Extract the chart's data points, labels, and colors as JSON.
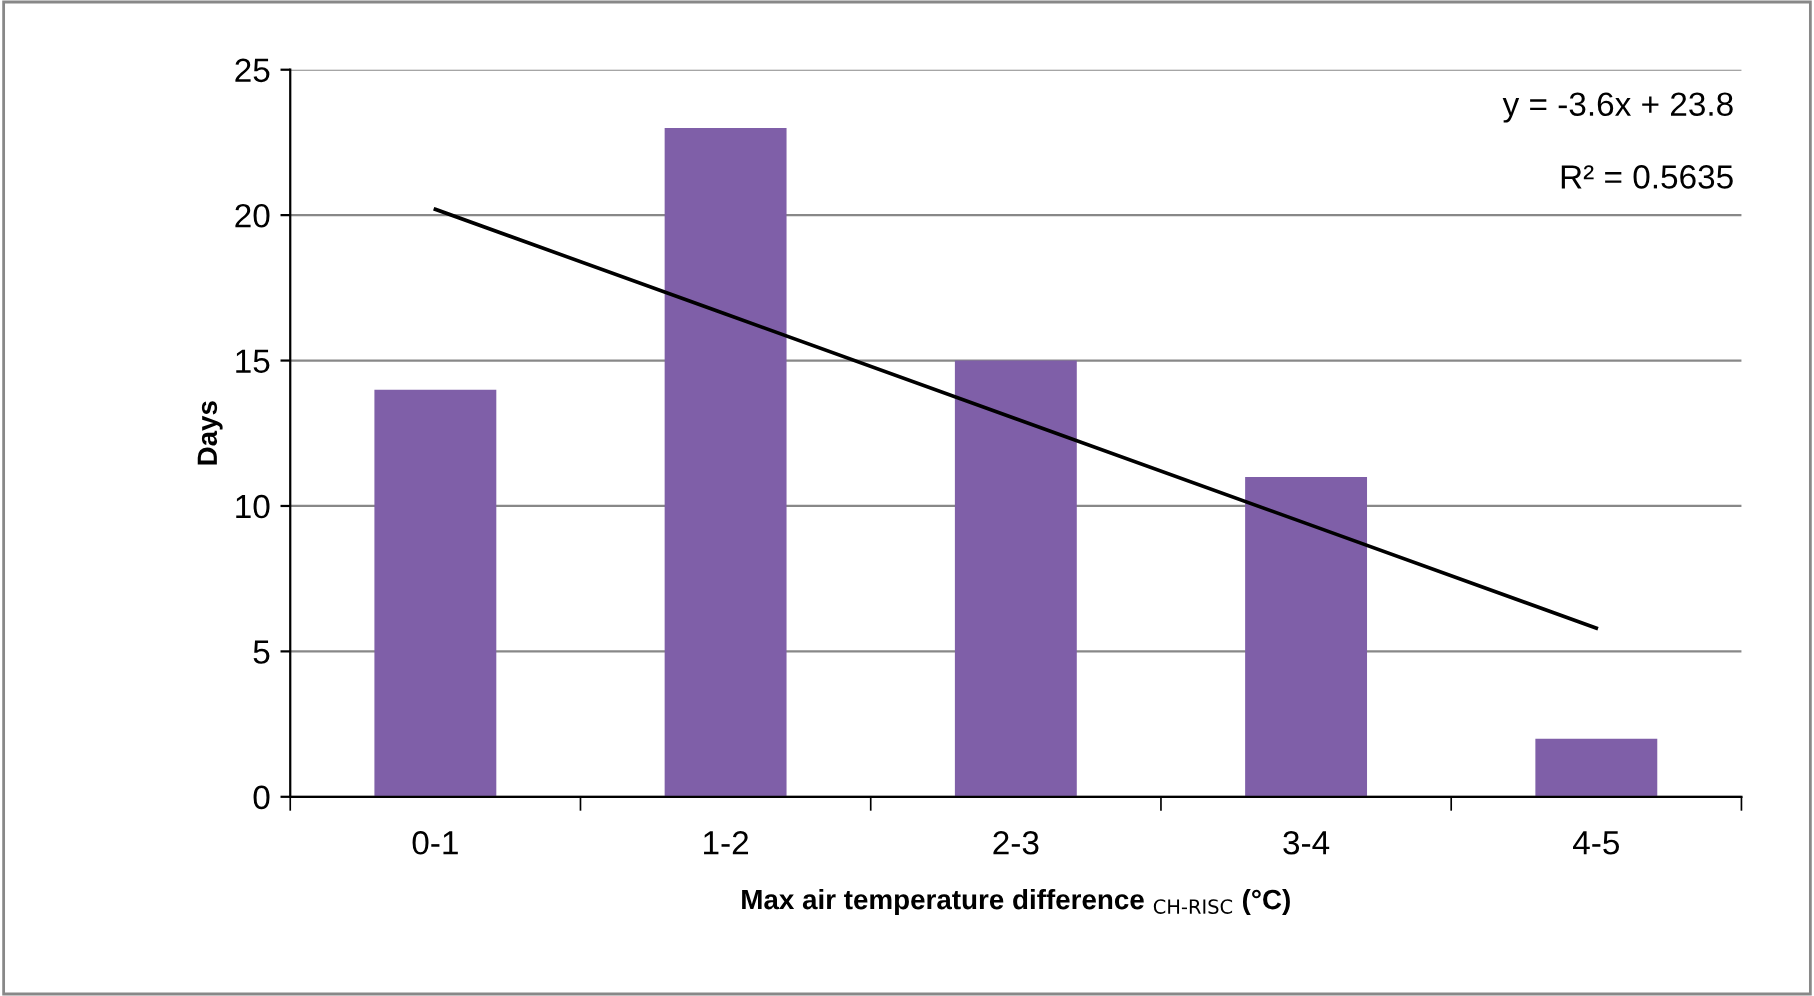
{
  "chart_data": {
    "type": "bar",
    "xlabel": "Max air temperature difference $_{CH-RISC}$ (°C)",
    "ylabel": "Days",
    "categories": [
      "0-1",
      "1-2",
      "2-3",
      "3-4",
      "4-5"
    ],
    "series": [
      {
        "color": "#7f5fa8",
        "values": [
          14,
          23,
          15,
          11,
          2
        ]
      },
      {
        "type": "line",
        "color": "#000000",
        "values": [
          20.2,
          16.6,
          13,
          9.4,
          5.8
        ]
      }
    ],
    "annotations": [
      "y = -3.6x + 23.8",
      "R² = 0.5635"
    ],
    "ylim": [
      0,
      25
    ],
    "yticks": [
      0,
      5,
      10,
      15,
      20,
      25
    ],
    "grid": "y",
    "legend": false
  }
}
